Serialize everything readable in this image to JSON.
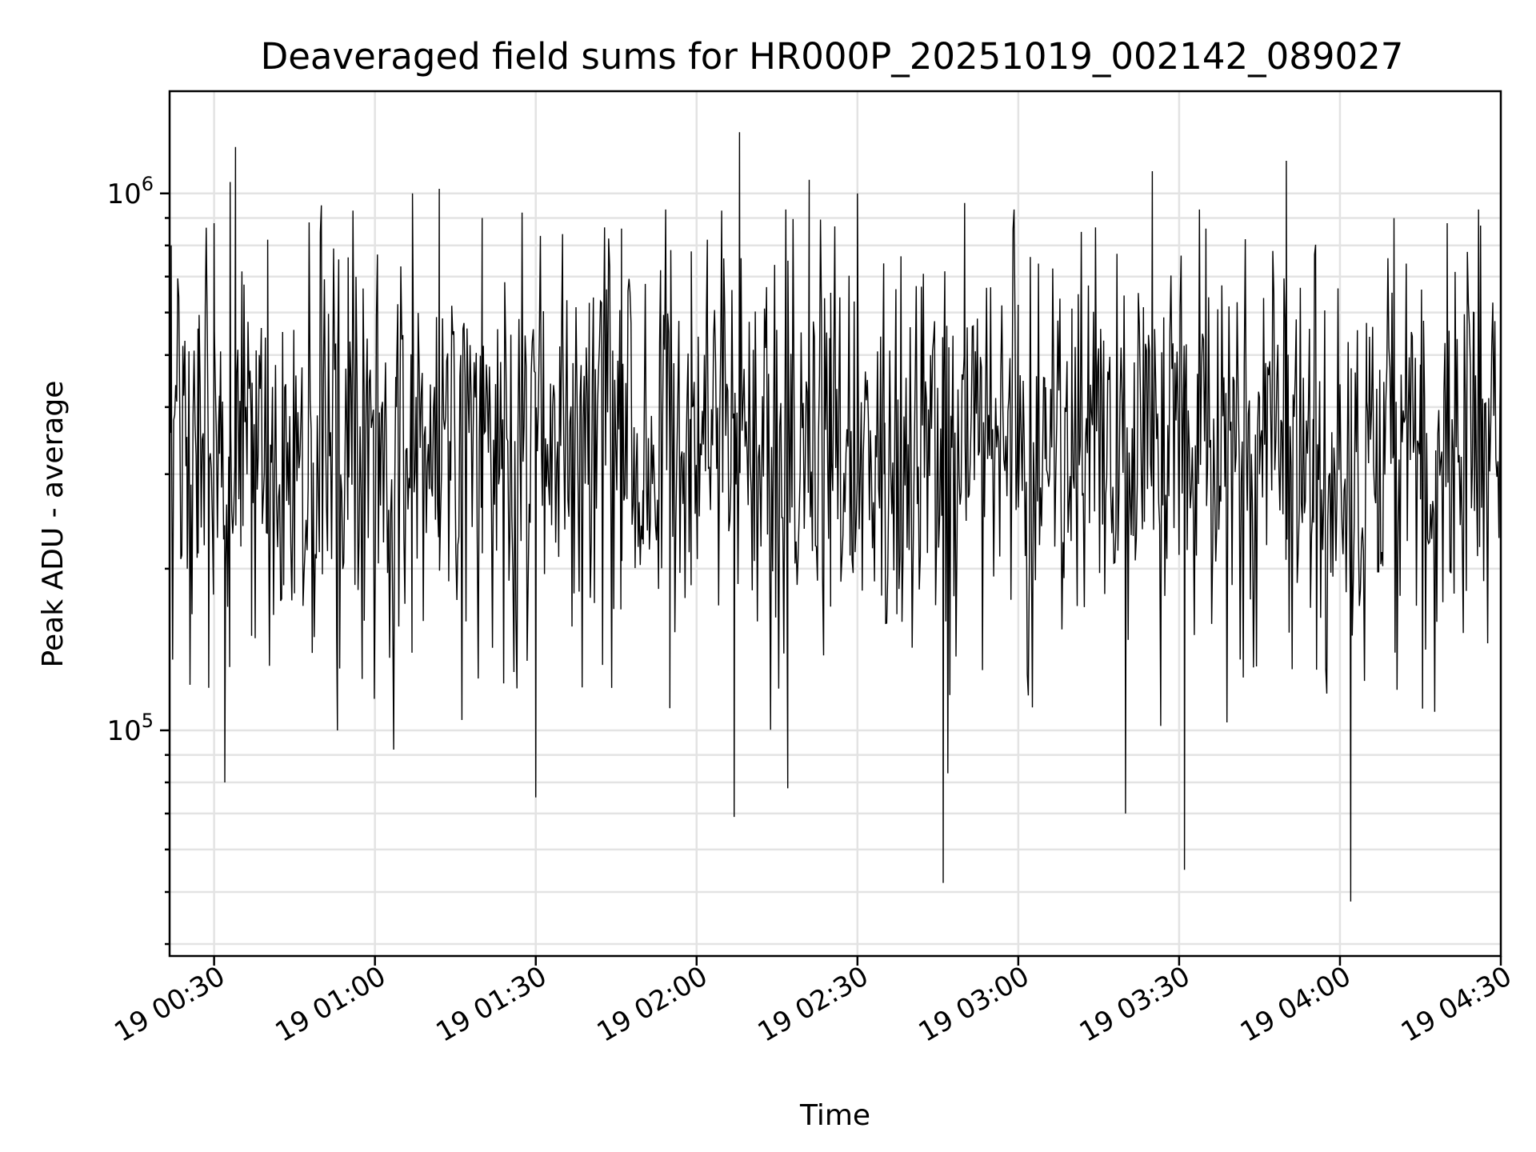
{
  "chart_data": {
    "type": "line",
    "title": "Deaveraged field sums for HR000P_20251019_002142_089027",
    "xlabel": "Time",
    "ylabel": "Peak ADU - average",
    "x_scale": "time",
    "y_scale": "log",
    "xlim": [
      "2025-10-19 00:21:42",
      "2025-10-19 04:30:00"
    ],
    "ylim": [
      38000,
      1550000
    ],
    "grid": true,
    "legend": "none",
    "line_color": "#000000",
    "x_ticks": [
      {
        "time": "2025-10-19 00:30",
        "label": "19 00:30"
      },
      {
        "time": "2025-10-19 01:00",
        "label": "19 01:00"
      },
      {
        "time": "2025-10-19 01:30",
        "label": "19 01:30"
      },
      {
        "time": "2025-10-19 02:00",
        "label": "19 02:00"
      },
      {
        "time": "2025-10-19 02:30",
        "label": "19 02:30"
      },
      {
        "time": "2025-10-19 03:00",
        "label": "19 03:00"
      },
      {
        "time": "2025-10-19 03:30",
        "label": "19 03:30"
      },
      {
        "time": "2025-10-19 04:00",
        "label": "19 04:00"
      },
      {
        "time": "2025-10-19 04:30",
        "label": "19 04:30"
      }
    ],
    "y_ticks": [
      {
        "value": 100000,
        "base": "10",
        "exp": "5"
      },
      {
        "value": 1000000,
        "base": "10",
        "exp": "6"
      }
    ],
    "series": [
      {
        "x": [
          "2025-10-19 00:22",
          "2025-10-19 00:25",
          "2025-10-19 00:27",
          "2025-10-19 00:29",
          "2025-10-19 00:30",
          "2025-10-19 00:31",
          "2025-10-19 00:32",
          "2025-10-19 00:33",
          "2025-10-19 00:34",
          "2025-10-19 00:35",
          "2025-10-19 00:37",
          "2025-10-19 00:40",
          "2025-10-19 00:45",
          "2025-10-19 00:50",
          "2025-10-19 00:53",
          "2025-10-19 00:55",
          "2025-10-19 00:58",
          "2025-10-19 01:04",
          "2025-10-19 01:07",
          "2025-10-19 01:12",
          "2025-10-19 01:16",
          "2025-10-19 01:20",
          "2025-10-19 01:25",
          "2025-10-19 01:30",
          "2025-10-19 01:35",
          "2025-10-19 01:40",
          "2025-10-19 01:46",
          "2025-10-19 01:50",
          "2025-10-19 01:55",
          "2025-10-19 01:59",
          "2025-10-19 02:02",
          "2025-10-19 02:07",
          "2025-10-19 02:08",
          "2025-10-19 02:12",
          "2025-10-19 02:17",
          "2025-10-19 02:21",
          "2025-10-19 02:25",
          "2025-10-19 02:30",
          "2025-10-19 02:35",
          "2025-10-19 02:40",
          "2025-10-19 02:46",
          "2025-10-19 02:50",
          "2025-10-19 02:55",
          "2025-10-19 03:00",
          "2025-10-19 03:05",
          "2025-10-19 03:10",
          "2025-10-19 03:15",
          "2025-10-19 03:20",
          "2025-10-19 03:25",
          "2025-10-19 03:31",
          "2025-10-19 03:35",
          "2025-10-19 03:40",
          "2025-10-19 03:45",
          "2025-10-19 03:50",
          "2025-10-19 03:55",
          "2025-10-19 04:02",
          "2025-10-19 04:05",
          "2025-10-19 04:10",
          "2025-10-19 04:15",
          "2025-10-19 04:20",
          "2025-10-19 04:25",
          "2025-10-19 04:30"
        ],
        "values": [
          800000,
          200000,
          560000,
          120000,
          880000,
          420000,
          80000,
          1050000,
          1220000,
          220000,
          150000,
          820000,
          180000,
          950000,
          100000,
          760000,
          160000,
          400000,
          1000000,
          1020000,
          500000,
          900000,
          190000,
          75000,
          840000,
          320000,
          860000,
          280000,
          110000,
          780000,
          820000,
          69000,
          1300000,
          220000,
          78000,
          1060000,
          170000,
          1000000,
          300000,
          350000,
          52000,
          960000,
          320000,
          260000,
          320000,
          610000,
          400000,
          70000,
          1100000,
          55000,
          860000,
          300000,
          300000,
          1150000,
          380000,
          48000,
          410000,
          330000,
          480000,
          880000,
          600000,
          560000
        ]
      }
    ]
  }
}
